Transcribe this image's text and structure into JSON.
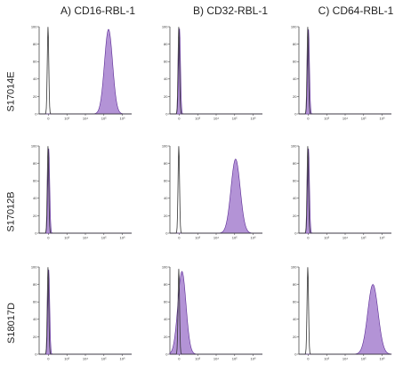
{
  "chart_data": {
    "type": "area",
    "title": "",
    "columns": [
      "A) CD16-RBL-1",
      "B) CD32-RBL-1",
      "C) CD64-RBL-1"
    ],
    "rows": [
      "S17014E",
      "S17012B",
      "S18017D"
    ],
    "colors": {
      "control_line": "#333333",
      "sample_fill": "#b393d6",
      "sample_line": "#5a2a94"
    },
    "ylim": [
      0,
      100
    ],
    "yticks": [
      "0",
      "20",
      "40",
      "60",
      "80",
      "100"
    ],
    "xlim": [
      0,
      5
    ],
    "xscale": "log",
    "xticks": [
      "0",
      "10³",
      "10⁴",
      "10⁵",
      "10⁶"
    ],
    "panels": [
      {
        "row": "S17014E",
        "column": "A) CD16-RBL-1",
        "control": {
          "peak": 0.48,
          "width": 0.04,
          "height": 100
        },
        "sample": {
          "peak": 3.75,
          "width": 0.22,
          "height": 97
        }
      },
      {
        "row": "S17014E",
        "column": "B) CD32-RBL-1",
        "control": {
          "peak": 0.48,
          "width": 0.04,
          "height": 100
        },
        "sample": {
          "peak": 0.52,
          "width": 0.05,
          "height": 98
        }
      },
      {
        "row": "S17014E",
        "column": "C) CD64-RBL-1",
        "control": {
          "peak": 0.48,
          "width": 0.04,
          "height": 100
        },
        "sample": {
          "peak": 0.52,
          "width": 0.05,
          "height": 97
        }
      },
      {
        "row": "S17012B",
        "column": "A) CD16-RBL-1",
        "control": {
          "peak": 0.48,
          "width": 0.04,
          "height": 100
        },
        "sample": {
          "peak": 0.52,
          "width": 0.05,
          "height": 97
        }
      },
      {
        "row": "S17012B",
        "column": "B) CD32-RBL-1",
        "control": {
          "peak": 0.48,
          "width": 0.04,
          "height": 100
        },
        "sample": {
          "peak": 3.55,
          "width": 0.25,
          "height": 85
        }
      },
      {
        "row": "S17012B",
        "column": "C) CD64-RBL-1",
        "control": {
          "peak": 0.48,
          "width": 0.04,
          "height": 100
        },
        "sample": {
          "peak": 0.52,
          "width": 0.05,
          "height": 97
        }
      },
      {
        "row": "S18017D",
        "column": "A) CD16-RBL-1",
        "control": {
          "peak": 0.48,
          "width": 0.04,
          "height": 100
        },
        "sample": {
          "peak": 0.52,
          "width": 0.05,
          "height": 97
        }
      },
      {
        "row": "S18017D",
        "column": "B) CD32-RBL-1",
        "control": {
          "peak": 0.48,
          "width": 0.04,
          "height": 98
        },
        "sample": {
          "peak": 0.65,
          "width": 0.22,
          "height": 95
        }
      },
      {
        "row": "S18017D",
        "column": "C) CD64-RBL-1",
        "control": {
          "peak": 0.48,
          "width": 0.04,
          "height": 100
        },
        "sample": {
          "peak": 4.0,
          "width": 0.28,
          "height": 80
        }
      }
    ]
  }
}
